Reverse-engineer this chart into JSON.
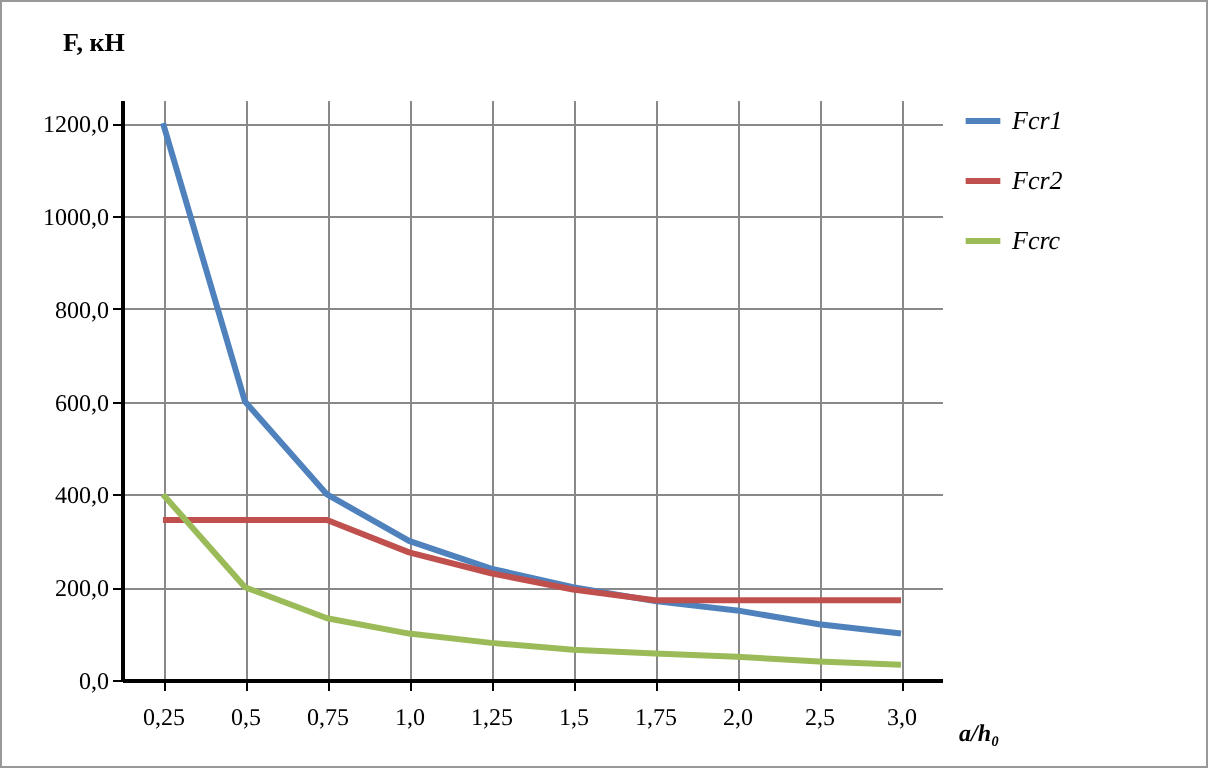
{
  "chart_data": {
    "type": "line",
    "ylabel": "F, кН",
    "xlabel": "a/h₀",
    "categories": [
      "0,25",
      "0,5",
      "0,75",
      "1,0",
      "1,25",
      "1,5",
      "1,75",
      "2,0",
      "2,5",
      "3,0"
    ],
    "series": [
      {
        "name": "Fcr1",
        "color": "#4f81bd",
        "values": [
          1200,
          600,
          400,
          300,
          240,
          200,
          170,
          150,
          120,
          100
        ]
      },
      {
        "name": "Fcr2",
        "color": "#c0504d",
        "values": [
          345,
          345,
          345,
          275,
          230,
          195,
          172,
          172,
          172,
          172
        ]
      },
      {
        "name": "Fcrc",
        "color": "#9bbb59",
        "values": [
          400,
          200,
          133,
          100,
          80,
          65,
          57,
          50,
          40,
          33
        ]
      }
    ],
    "ylim": [
      0,
      1250
    ],
    "yticks": [
      {
        "value": 0,
        "label": "0,0"
      },
      {
        "value": 200,
        "label": "200,0"
      },
      {
        "value": 400,
        "label": "400,0"
      },
      {
        "value": 600,
        "label": "600,0"
      },
      {
        "value": 800,
        "label": "800,0"
      },
      {
        "value": 1000,
        "label": "1000,0"
      },
      {
        "value": 1200,
        "label": "1200,0"
      }
    ],
    "grid": true,
    "legend": "right",
    "marker": "none",
    "line_style": "solid"
  }
}
